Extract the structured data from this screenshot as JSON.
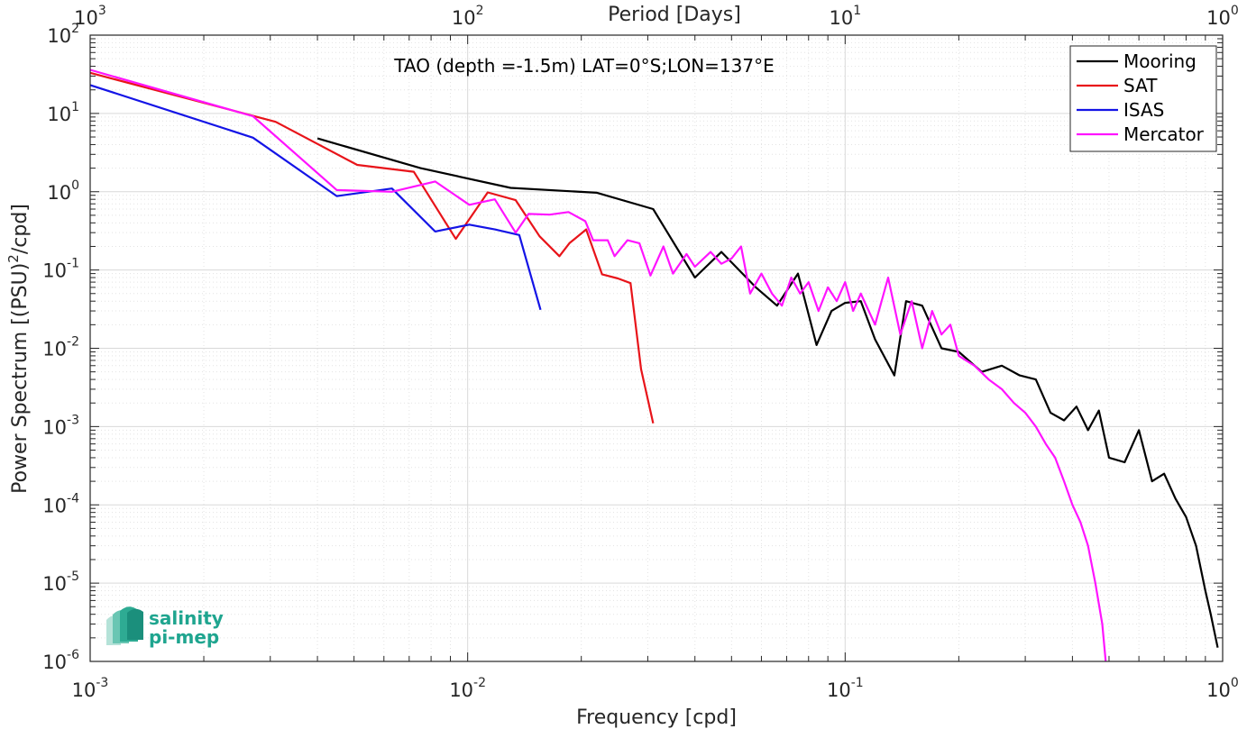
{
  "chart_data": {
    "type": "line",
    "title": "TAO (depth =-1.5m) LAT=0°S;LON=137°E",
    "xlabel": "Frequency [cpd]",
    "ylabel_parts": [
      "Power Spectrum [(PSU)",
      "2",
      "/cpd]"
    ],
    "top_xlabel": "Period [Days]",
    "x_scale": "log",
    "y_scale": "log",
    "xlim": [
      0.001,
      1
    ],
    "ylim": [
      1e-06,
      100
    ],
    "grid": true,
    "legend_position": "top-right",
    "x_ticks": [
      {
        "value": 0.001,
        "base": "10",
        "exp": "-3"
      },
      {
        "value": 0.01,
        "base": "10",
        "exp": "-2"
      },
      {
        "value": 0.1,
        "base": "10",
        "exp": "-1"
      },
      {
        "value": 1,
        "base": "10",
        "exp": "0"
      }
    ],
    "top_ticks": [
      {
        "value": 0.001,
        "base": "10",
        "exp": "3"
      },
      {
        "value": 0.01,
        "base": "10",
        "exp": "2"
      },
      {
        "value": 0.1,
        "base": "10",
        "exp": "1"
      },
      {
        "value": 1,
        "base": "10",
        "exp": "0"
      }
    ],
    "y_ticks": [
      {
        "value": 1e-06,
        "base": "10",
        "exp": "-6"
      },
      {
        "value": 1e-05,
        "base": "10",
        "exp": "-5"
      },
      {
        "value": 0.0001,
        "base": "10",
        "exp": "-4"
      },
      {
        "value": 0.001,
        "base": "10",
        "exp": "-3"
      },
      {
        "value": 0.01,
        "base": "10",
        "exp": "-2"
      },
      {
        "value": 0.1,
        "base": "10",
        "exp": "-1"
      },
      {
        "value": 1,
        "base": "10",
        "exp": "0"
      },
      {
        "value": 10,
        "base": "10",
        "exp": "1"
      },
      {
        "value": 100,
        "base": "10",
        "exp": "2"
      }
    ],
    "series": [
      {
        "name": "Mooring",
        "color": "#000000",
        "x": [
          0.004,
          0.0075,
          0.013,
          0.022,
          0.031,
          0.04,
          0.047,
          0.058,
          0.066,
          0.075,
          0.084,
          0.092,
          0.1,
          0.11,
          0.12,
          0.135,
          0.145,
          0.16,
          0.18,
          0.2,
          0.23,
          0.26,
          0.29,
          0.32,
          0.35,
          0.38,
          0.41,
          0.44,
          0.47,
          0.5,
          0.55,
          0.6,
          0.65,
          0.7,
          0.75,
          0.8,
          0.85,
          0.9,
          0.93,
          0.97
        ],
        "y": [
          4.8,
          2.0,
          1.12,
          0.97,
          0.6,
          0.08,
          0.17,
          0.06,
          0.035,
          0.09,
          0.011,
          0.03,
          0.038,
          0.04,
          0.013,
          0.0045,
          0.04,
          0.035,
          0.01,
          0.009,
          0.005,
          0.006,
          0.0045,
          0.004,
          0.0015,
          0.0012,
          0.0018,
          0.0009,
          0.0016,
          0.0004,
          0.00035,
          0.0009,
          0.0002,
          0.00025,
          0.00012,
          7e-05,
          3e-05,
          8e-06,
          4e-06,
          1.5e-06
        ]
      },
      {
        "name": "SAT",
        "color": "#e8141a",
        "x": [
          0.001,
          0.0031,
          0.0051,
          0.0072,
          0.0093,
          0.0113,
          0.0134,
          0.0155,
          0.0175,
          0.0186,
          0.0206,
          0.0227,
          0.025,
          0.027,
          0.0288,
          0.031
        ],
        "y": [
          33,
          7.8,
          2.2,
          1.8,
          0.25,
          0.98,
          0.78,
          0.27,
          0.15,
          0.22,
          0.33,
          0.088,
          0.078,
          0.068,
          0.0054,
          0.0011
        ]
      },
      {
        "name": "ISAS",
        "color": "#1414e6",
        "x": [
          0.001,
          0.0027,
          0.0045,
          0.0063,
          0.0082,
          0.0101,
          0.0118,
          0.0137,
          0.0156
        ],
        "y": [
          23,
          4.9,
          0.88,
          1.1,
          0.31,
          0.38,
          0.33,
          0.28,
          0.031
        ]
      },
      {
        "name": "Mercator",
        "color": "#ff14ff",
        "x": [
          0.001,
          0.0027,
          0.0045,
          0.0063,
          0.0082,
          0.0101,
          0.0118,
          0.0134,
          0.0145,
          0.0165,
          0.0185,
          0.0205,
          0.0215,
          0.0235,
          0.0245,
          0.0265,
          0.0285,
          0.0305,
          0.033,
          0.035,
          0.038,
          0.04,
          0.044,
          0.047,
          0.05,
          0.053,
          0.056,
          0.06,
          0.064,
          0.068,
          0.072,
          0.076,
          0.08,
          0.085,
          0.09,
          0.095,
          0.1,
          0.105,
          0.11,
          0.12,
          0.13,
          0.14,
          0.15,
          0.16,
          0.17,
          0.18,
          0.19,
          0.2,
          0.22,
          0.24,
          0.26,
          0.28,
          0.3,
          0.32,
          0.34,
          0.36,
          0.38,
          0.4,
          0.42,
          0.44,
          0.46,
          0.48,
          0.49
        ],
        "y": [
          36,
          9.2,
          1.05,
          1.0,
          1.35,
          0.68,
          0.8,
          0.3,
          0.52,
          0.51,
          0.55,
          0.42,
          0.24,
          0.24,
          0.15,
          0.24,
          0.22,
          0.085,
          0.2,
          0.09,
          0.16,
          0.11,
          0.17,
          0.12,
          0.14,
          0.2,
          0.05,
          0.09,
          0.05,
          0.035,
          0.08,
          0.05,
          0.07,
          0.03,
          0.06,
          0.04,
          0.07,
          0.03,
          0.05,
          0.02,
          0.08,
          0.015,
          0.04,
          0.01,
          0.03,
          0.015,
          0.02,
          0.008,
          0.006,
          0.004,
          0.003,
          0.002,
          0.0015,
          0.001,
          0.0006,
          0.0004,
          0.0002,
          0.0001,
          6e-05,
          3e-05,
          1e-05,
          3e-06,
          1e-06
        ]
      }
    ]
  },
  "logo": {
    "line1": "salinity",
    "line2": "pi-mep"
  }
}
